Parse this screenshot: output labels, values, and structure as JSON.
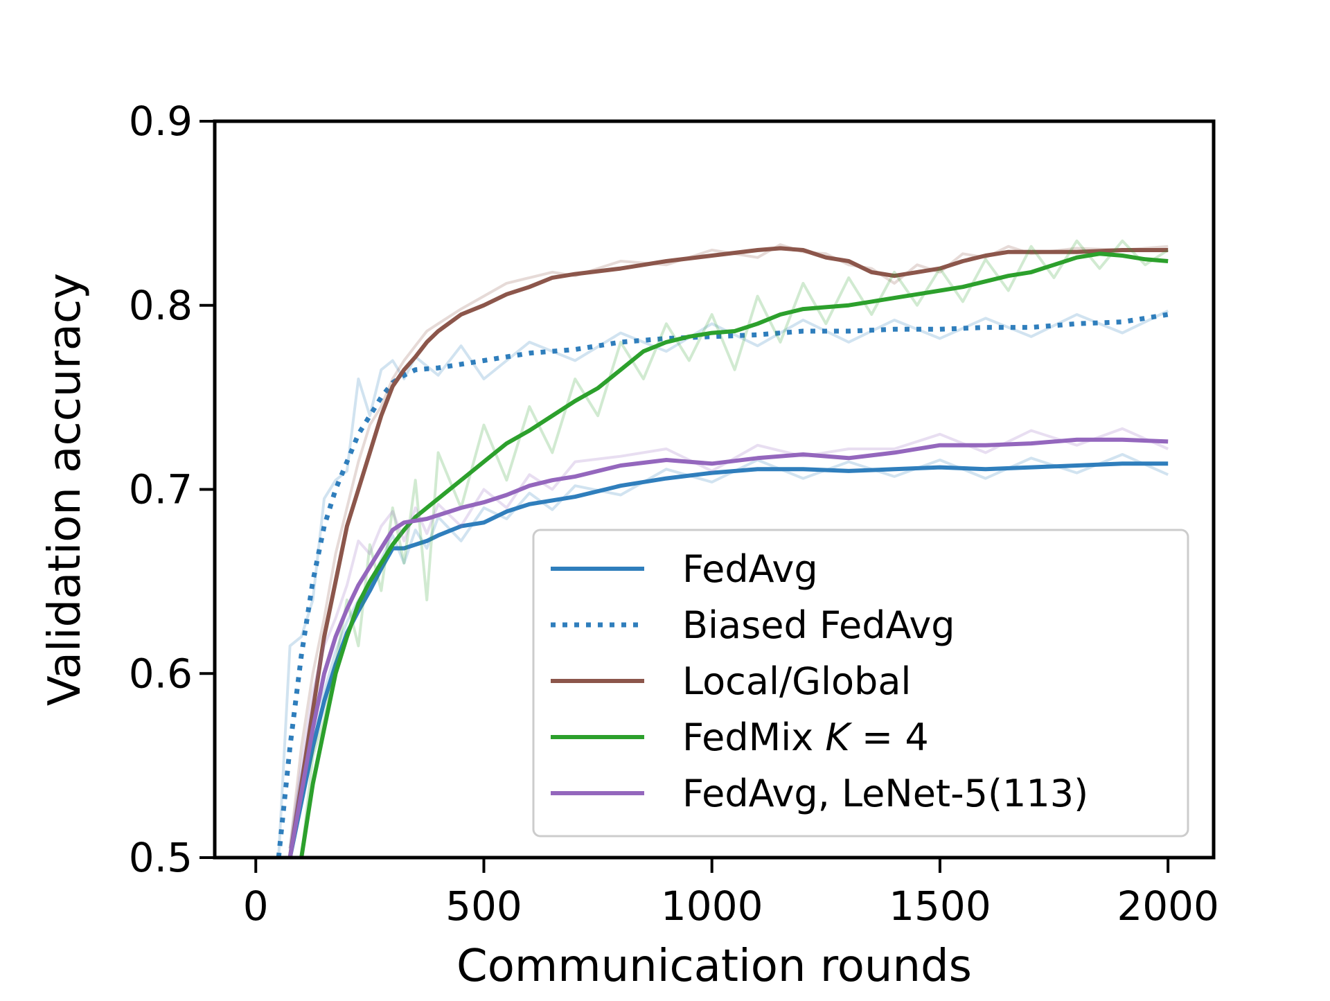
{
  "chart_data": {
    "type": "line",
    "title": "",
    "xlabel": "Communication rounds",
    "ylabel": "Validation accuracy",
    "xlim": [
      -90,
      2100
    ],
    "ylim": [
      0.5,
      0.9
    ],
    "xticks": [
      0,
      500,
      1000,
      1500,
      2000
    ],
    "xtick_labels": [
      "0",
      "500",
      "1000",
      "1500",
      "2000"
    ],
    "yticks": [
      0.5,
      0.6,
      0.7,
      0.8,
      0.9
    ],
    "ytick_labels": [
      "0.5",
      "0.6",
      "0.7",
      "0.8",
      "0.9"
    ],
    "legend_position": "lower-right",
    "series": [
      {
        "name": "FedAvg",
        "label_parts": [
          "FedAvg"
        ],
        "color": "#2f7ebc",
        "style": "solid",
        "x": [
          75,
          100,
          125,
          150,
          175,
          200,
          225,
          250,
          275,
          300,
          325,
          350,
          375,
          400,
          450,
          500,
          550,
          600,
          650,
          700,
          800,
          900,
          1000,
          1100,
          1200,
          1300,
          1400,
          1500,
          1600,
          1700,
          1800,
          1900,
          2000
        ],
        "y": [
          0.5,
          0.53,
          0.56,
          0.585,
          0.605,
          0.622,
          0.634,
          0.645,
          0.657,
          0.668,
          0.668,
          0.67,
          0.672,
          0.675,
          0.68,
          0.682,
          0.688,
          0.692,
          0.694,
          0.696,
          0.702,
          0.706,
          0.709,
          0.711,
          0.711,
          0.71,
          0.711,
          0.712,
          0.711,
          0.712,
          0.713,
          0.714,
          0.714
        ],
        "raw_y": [
          0.505,
          0.545,
          0.575,
          0.59,
          0.612,
          0.628,
          0.64,
          0.648,
          0.662,
          0.675,
          0.66,
          0.678,
          0.668,
          0.685,
          0.672,
          0.69,
          0.684,
          0.698,
          0.689,
          0.702,
          0.697,
          0.711,
          0.704,
          0.716,
          0.706,
          0.715,
          0.707,
          0.716,
          0.706,
          0.717,
          0.709,
          0.719,
          0.708
        ]
      },
      {
        "name": "Biased FedAvg",
        "label_parts": [
          "Biased FedAvg"
        ],
        "color": "#2f7ebc",
        "style": "dotted",
        "x": [
          50,
          75,
          100,
          125,
          150,
          175,
          200,
          225,
          250,
          275,
          300,
          325,
          350,
          400,
          450,
          500,
          600,
          700,
          800,
          900,
          1000,
          1100,
          1200,
          1300,
          1400,
          1500,
          1600,
          1700,
          1800,
          1900,
          2000
        ],
        "y": [
          0.5,
          0.56,
          0.61,
          0.65,
          0.68,
          0.7,
          0.715,
          0.73,
          0.74,
          0.75,
          0.758,
          0.762,
          0.765,
          0.766,
          0.768,
          0.77,
          0.774,
          0.776,
          0.78,
          0.782,
          0.783,
          0.784,
          0.786,
          0.786,
          0.787,
          0.787,
          0.788,
          0.788,
          0.79,
          0.791,
          0.795
        ],
        "raw_y": [
          0.5,
          0.615,
          0.62,
          0.64,
          0.695,
          0.705,
          0.71,
          0.76,
          0.74,
          0.765,
          0.77,
          0.76,
          0.772,
          0.762,
          0.778,
          0.76,
          0.78,
          0.77,
          0.785,
          0.775,
          0.79,
          0.778,
          0.792,
          0.78,
          0.792,
          0.782,
          0.793,
          0.783,
          0.795,
          0.785,
          0.797
        ]
      },
      {
        "name": "Local/Global",
        "label_parts": [
          "Local/Global"
        ],
        "color": "#8c564b",
        "style": "solid",
        "x": [
          75,
          100,
          125,
          150,
          175,
          200,
          225,
          250,
          275,
          300,
          325,
          350,
          375,
          400,
          450,
          500,
          550,
          600,
          650,
          700,
          800,
          900,
          1000,
          1100,
          1150,
          1200,
          1250,
          1300,
          1350,
          1400,
          1450,
          1500,
          1550,
          1600,
          1650,
          1700,
          1800,
          1900,
          2000
        ],
        "y": [
          0.5,
          0.54,
          0.58,
          0.62,
          0.65,
          0.68,
          0.7,
          0.72,
          0.74,
          0.756,
          0.765,
          0.772,
          0.78,
          0.786,
          0.795,
          0.8,
          0.806,
          0.81,
          0.815,
          0.817,
          0.82,
          0.824,
          0.827,
          0.83,
          0.831,
          0.83,
          0.826,
          0.824,
          0.818,
          0.816,
          0.818,
          0.82,
          0.824,
          0.827,
          0.829,
          0.829,
          0.829,
          0.83,
          0.83
        ],
        "raw_y": [
          0.505,
          0.56,
          0.6,
          0.63,
          0.665,
          0.69,
          0.715,
          0.735,
          0.745,
          0.76,
          0.77,
          0.778,
          0.786,
          0.79,
          0.798,
          0.805,
          0.812,
          0.815,
          0.818,
          0.816,
          0.824,
          0.822,
          0.83,
          0.826,
          0.833,
          0.829,
          0.828,
          0.822,
          0.82,
          0.812,
          0.822,
          0.818,
          0.828,
          0.826,
          0.832,
          0.828,
          0.831,
          0.83,
          0.832
        ]
      },
      {
        "name": "FedMix K = 4",
        "label_parts": [
          "FedMix ",
          "K",
          " = 4"
        ],
        "color": "#2ca02c",
        "style": "solid",
        "x": [
          100,
          125,
          150,
          175,
          200,
          225,
          250,
          275,
          300,
          325,
          350,
          375,
          400,
          450,
          500,
          550,
          600,
          650,
          700,
          750,
          800,
          850,
          900,
          950,
          1000,
          1050,
          1100,
          1150,
          1200,
          1250,
          1300,
          1350,
          1400,
          1450,
          1500,
          1550,
          1600,
          1650,
          1700,
          1750,
          1800,
          1850,
          1900,
          1950,
          2000
        ],
        "y": [
          0.5,
          0.54,
          0.57,
          0.6,
          0.62,
          0.638,
          0.65,
          0.66,
          0.67,
          0.678,
          0.685,
          0.69,
          0.695,
          0.705,
          0.715,
          0.725,
          0.732,
          0.74,
          0.748,
          0.755,
          0.765,
          0.775,
          0.78,
          0.783,
          0.785,
          0.786,
          0.79,
          0.795,
          0.798,
          0.799,
          0.8,
          0.802,
          0.804,
          0.806,
          0.808,
          0.81,
          0.813,
          0.816,
          0.818,
          0.822,
          0.826,
          0.828,
          0.827,
          0.825,
          0.824
        ],
        "raw_y": [
          0.5,
          0.555,
          0.575,
          0.605,
          0.64,
          0.615,
          0.67,
          0.645,
          0.69,
          0.66,
          0.705,
          0.64,
          0.72,
          0.69,
          0.735,
          0.705,
          0.745,
          0.72,
          0.76,
          0.74,
          0.78,
          0.76,
          0.79,
          0.77,
          0.795,
          0.765,
          0.805,
          0.78,
          0.812,
          0.79,
          0.815,
          0.795,
          0.818,
          0.8,
          0.82,
          0.802,
          0.825,
          0.808,
          0.832,
          0.815,
          0.835,
          0.82,
          0.835,
          0.822,
          0.83
        ]
      },
      {
        "name": "FedAvg, LeNet-5(113)",
        "label_parts": [
          "FedAvg, LeNet-5(113)"
        ],
        "color": "#9467bd",
        "style": "solid",
        "x": [
          75,
          100,
          125,
          150,
          175,
          200,
          225,
          250,
          275,
          300,
          325,
          350,
          375,
          400,
          450,
          500,
          550,
          600,
          650,
          700,
          800,
          900,
          1000,
          1100,
          1200,
          1300,
          1400,
          1500,
          1600,
          1700,
          1800,
          1900,
          2000
        ],
        "y": [
          0.5,
          0.535,
          0.57,
          0.6,
          0.62,
          0.635,
          0.648,
          0.658,
          0.668,
          0.678,
          0.682,
          0.683,
          0.684,
          0.686,
          0.69,
          0.693,
          0.697,
          0.702,
          0.705,
          0.707,
          0.713,
          0.716,
          0.714,
          0.717,
          0.719,
          0.717,
          0.72,
          0.724,
          0.724,
          0.725,
          0.727,
          0.727,
          0.726
        ],
        "raw_y": [
          0.505,
          0.55,
          0.59,
          0.615,
          0.63,
          0.648,
          0.672,
          0.665,
          0.68,
          0.688,
          0.672,
          0.69,
          0.676,
          0.692,
          0.68,
          0.7,
          0.69,
          0.708,
          0.7,
          0.715,
          0.718,
          0.722,
          0.71,
          0.724,
          0.718,
          0.722,
          0.722,
          0.73,
          0.72,
          0.732,
          0.724,
          0.733,
          0.722
        ]
      }
    ]
  }
}
